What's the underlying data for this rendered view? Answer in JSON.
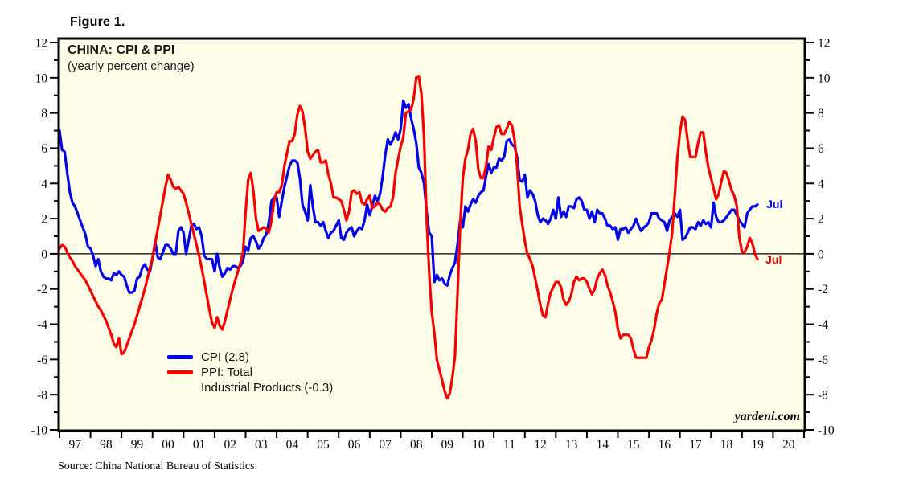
{
  "figure_label": "Figure 1.",
  "chart": {
    "title": "CHINA: CPI & PPI",
    "subtitle": "(yearly percent change)",
    "watermark": "yardeni.com",
    "legend": {
      "cpi_label": "CPI (2.8)",
      "ppi_label_line1": "PPI: Total",
      "ppi_label_line2": "Industrial Products (-0.3)"
    },
    "annotations": {
      "cpi_latest": "Jul",
      "ppi_latest": "Jul"
    },
    "colors": {
      "cpi": "#0202e6",
      "ppi": "#f40000",
      "plot_bg": "#fffee8",
      "axis": "#000000"
    }
  },
  "source_note": "Source: China National Bureau of Statistics.",
  "chart_data": {
    "type": "line",
    "title": "CHINA: CPI & PPI",
    "subtitle": "(yearly percent change)",
    "x_unit": "month",
    "x_start": "1997-01",
    "x_end": "2019-07",
    "xlim": [
      1997.0,
      2021.0
    ],
    "ylim": [
      -10,
      12
    ],
    "y_major_ticks": [
      12,
      10,
      8,
      6,
      4,
      2,
      0,
      -2,
      -4,
      -6,
      -8,
      -10
    ],
    "y_minor_tick_step": 1,
    "x_year_labels": [
      "97",
      "98",
      "99",
      "00",
      "01",
      "02",
      "03",
      "04",
      "05",
      "06",
      "07",
      "08",
      "09",
      "10",
      "11",
      "12",
      "13",
      "14",
      "15",
      "16",
      "17",
      "18",
      "19",
      "20"
    ],
    "zero_line": true,
    "grid": false,
    "legend_position": "inside-bottom-left",
    "series": [
      {
        "name": "CPI",
        "color_key": "cpi",
        "latest_annotation": "Jul",
        "latest_value": 2.8,
        "values": [
          7.0,
          5.9,
          5.8,
          4.6,
          3.5,
          2.9,
          2.7,
          2.3,
          1.9,
          1.5,
          1.1,
          0.4,
          0.3,
          -0.1,
          -0.7,
          -0.3,
          -1.0,
          -1.3,
          -1.4,
          -1.4,
          -1.5,
          -1.1,
          -1.2,
          -1.0,
          -1.2,
          -1.3,
          -1.8,
          -2.2,
          -2.2,
          -2.1,
          -1.4,
          -1.3,
          -0.8,
          -0.6,
          -0.9,
          -1.0,
          -0.2,
          0.7,
          -0.2,
          -0.3,
          0.1,
          0.5,
          0.5,
          0.3,
          0.0,
          0.0,
          1.3,
          1.5,
          1.2,
          0.0,
          0.8,
          1.6,
          1.7,
          1.4,
          1.5,
          1.0,
          -0.1,
          -0.3,
          -0.3,
          -0.3,
          -1.0,
          0.0,
          -0.8,
          -1.3,
          -1.1,
          -0.8,
          -0.9,
          -0.7,
          -0.7,
          -0.8,
          -0.7,
          -0.4,
          0.4,
          0.2,
          0.9,
          1.0,
          0.7,
          0.3,
          0.5,
          0.9,
          1.1,
          1.8,
          3.0,
          3.2,
          3.2,
          2.1,
          3.0,
          3.8,
          4.4,
          5.0,
          5.3,
          5.3,
          5.2,
          4.3,
          2.8,
          2.4,
          1.9,
          3.9,
          2.7,
          1.8,
          1.8,
          1.6,
          1.8,
          1.3,
          0.9,
          1.2,
          1.3,
          1.6,
          1.9,
          0.9,
          0.8,
          1.2,
          1.4,
          1.5,
          1.0,
          1.3,
          1.5,
          1.4,
          1.9,
          2.8,
          2.2,
          2.7,
          3.3,
          3.0,
          3.4,
          4.4,
          5.6,
          6.5,
          6.2,
          6.5,
          6.9,
          6.5,
          7.1,
          8.7,
          8.3,
          8.5,
          7.7,
          7.1,
          6.3,
          4.9,
          4.6,
          4.0,
          2.4,
          1.2,
          1.0,
          -1.6,
          -1.2,
          -1.5,
          -1.4,
          -1.7,
          -1.8,
          -1.2,
          -0.8,
          -0.5,
          0.6,
          1.9,
          1.5,
          2.7,
          2.4,
          2.8,
          3.1,
          2.9,
          3.3,
          3.5,
          3.6,
          4.4,
          5.1,
          4.6,
          4.9,
          4.9,
          5.4,
          5.3,
          5.5,
          6.4,
          6.5,
          6.2,
          6.1,
          5.5,
          4.2,
          4.1,
          4.5,
          3.2,
          3.6,
          3.4,
          3.0,
          2.2,
          1.8,
          2.0,
          1.9,
          1.7,
          2.0,
          2.5,
          2.0,
          3.2,
          2.1,
          2.4,
          2.1,
          2.7,
          2.7,
          2.6,
          3.1,
          3.2,
          3.0,
          2.5,
          2.5,
          2.0,
          2.4,
          1.8,
          2.5,
          2.3,
          2.3,
          2.0,
          1.6,
          1.6,
          1.4,
          1.5,
          0.8,
          1.4,
          1.4,
          1.5,
          1.2,
          1.4,
          1.6,
          2.0,
          1.6,
          1.3,
          1.5,
          1.6,
          1.8,
          2.3,
          2.3,
          2.3,
          2.0,
          1.9,
          1.8,
          1.3,
          1.9,
          2.1,
          2.3,
          2.1,
          2.5,
          0.8,
          0.9,
          1.2,
          1.5,
          1.5,
          1.4,
          1.8,
          1.6,
          1.9,
          1.7,
          1.8,
          1.5,
          2.9,
          2.1,
          1.8,
          1.8,
          1.9,
          2.1,
          2.3,
          2.5,
          2.5,
          2.2,
          1.9,
          1.7,
          1.5,
          2.3,
          2.5,
          2.7,
          2.7,
          2.8
        ]
      },
      {
        "name": "PPI: Total Industrial Products",
        "color_key": "ppi",
        "latest_annotation": "Jul",
        "latest_value": -0.3,
        "values": [
          0.3,
          0.5,
          0.4,
          0.1,
          -0.2,
          -0.4,
          -0.7,
          -0.9,
          -1.1,
          -1.3,
          -1.5,
          -1.8,
          -2.1,
          -2.4,
          -2.7,
          -3.0,
          -3.2,
          -3.5,
          -3.8,
          -4.2,
          -4.6,
          -5.1,
          -5.3,
          -4.8,
          -5.7,
          -5.6,
          -5.2,
          -4.8,
          -4.4,
          -4.0,
          -3.5,
          -3.0,
          -2.5,
          -2.0,
          -1.4,
          -0.8,
          -0.2,
          0.6,
          1.4,
          2.2,
          3.0,
          3.8,
          4.5,
          4.2,
          3.8,
          3.7,
          3.8,
          3.6,
          3.4,
          2.9,
          2.3,
          1.7,
          1.1,
          0.5,
          -0.1,
          -0.8,
          -1.6,
          -2.4,
          -3.2,
          -3.9,
          -4.2,
          -3.6,
          -4.1,
          -4.3,
          -3.8,
          -3.2,
          -2.6,
          -2.0,
          -1.5,
          -1.0,
          -0.5,
          0.1,
          2.4,
          4.2,
          4.6,
          3.6,
          2.0,
          1.3,
          1.4,
          1.5,
          1.4,
          1.2,
          1.9,
          3.0,
          3.5,
          3.5,
          3.9,
          5.0,
          5.7,
          6.4,
          6.4,
          6.8,
          7.9,
          8.4,
          8.1,
          7.1,
          5.8,
          5.4,
          5.6,
          5.8,
          5.9,
          5.2,
          5.2,
          5.3,
          4.5,
          4.0,
          3.2,
          3.2,
          3.1,
          3.0,
          2.5,
          1.9,
          2.4,
          3.5,
          3.6,
          3.4,
          3.5,
          2.9,
          2.8,
          3.1,
          3.3,
          2.6,
          2.7,
          2.9,
          2.8,
          2.5,
          2.4,
          2.6,
          2.7,
          3.2,
          4.6,
          5.4,
          6.1,
          6.6,
          8.0,
          8.1,
          8.2,
          8.8,
          10.0,
          10.1,
          9.1,
          6.6,
          2.0,
          -1.1,
          -3.3,
          -4.5,
          -6.0,
          -6.6,
          -7.2,
          -7.8,
          -8.2,
          -7.9,
          -7.0,
          -5.8,
          -2.1,
          1.7,
          4.3,
          5.4,
          5.9,
          6.8,
          7.1,
          6.4,
          4.8,
          4.3,
          4.3,
          5.0,
          6.1,
          5.9,
          6.6,
          7.2,
          7.3,
          6.8,
          6.8,
          7.1,
          7.5,
          7.3,
          6.5,
          5.0,
          2.7,
          1.7,
          0.7,
          0.0,
          -0.3,
          -0.7,
          -1.4,
          -2.1,
          -2.9,
          -3.5,
          -3.6,
          -2.8,
          -2.2,
          -1.9,
          -1.6,
          -1.6,
          -1.9,
          -2.6,
          -2.9,
          -2.7,
          -2.3,
          -1.6,
          -1.3,
          -1.5,
          -1.4,
          -1.4,
          -1.6,
          -2.0,
          -2.3,
          -2.0,
          -1.4,
          -1.1,
          -0.9,
          -1.2,
          -1.8,
          -2.2,
          -2.7,
          -3.3,
          -4.3,
          -4.8,
          -4.6,
          -4.6,
          -4.6,
          -4.8,
          -5.4,
          -5.9,
          -5.9,
          -5.9,
          -5.9,
          -5.9,
          -5.3,
          -4.9,
          -4.3,
          -3.4,
          -2.8,
          -2.6,
          -1.7,
          -0.8,
          0.1,
          1.2,
          3.3,
          5.5,
          6.9,
          7.8,
          7.6,
          6.4,
          5.5,
          5.5,
          5.5,
          6.3,
          6.9,
          6.9,
          5.8,
          4.9,
          4.3,
          3.7,
          3.1,
          3.4,
          4.1,
          4.7,
          4.6,
          4.1,
          3.6,
          3.3,
          2.7,
          0.9,
          0.1,
          0.1,
          0.4,
          0.9,
          0.6,
          0.0,
          -0.3
        ]
      }
    ]
  }
}
